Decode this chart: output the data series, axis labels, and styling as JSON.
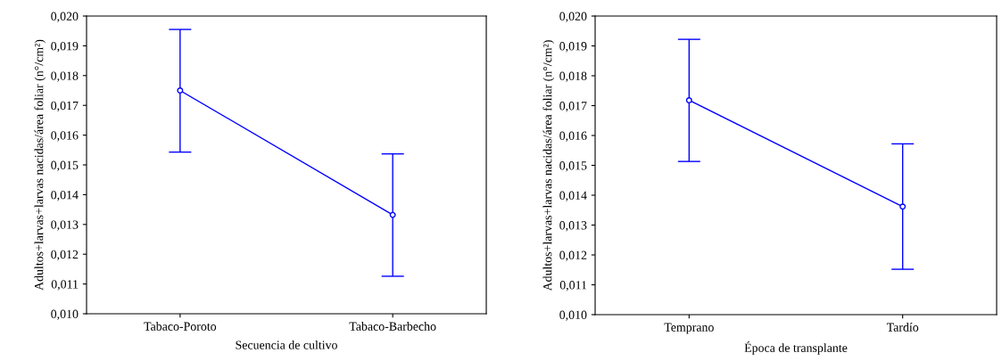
{
  "chart_data": [
    {
      "type": "line",
      "xlabel": "Secuencia de cultivo",
      "ylabel": "Adultos+larvas+larvas nacidas/área foliar (n°/cm²)",
      "categories": [
        "Tabaco-Poroto",
        "Tabaco-Barbecho"
      ],
      "series": [
        {
          "color": "#0000ff",
          "values": [
            0.0175,
            0.01332
          ],
          "errors": [
            [
              0.01543,
              0.01955
            ],
            [
              0.01126,
              0.01537
            ]
          ]
        }
      ],
      "ylim": [
        0.01,
        0.02
      ],
      "yticks": [
        {
          "value": 0.01,
          "label": "0,010"
        },
        {
          "value": 0.011,
          "label": "0,011"
        },
        {
          "value": 0.012,
          "label": "0,012"
        },
        {
          "value": 0.013,
          "label": "0,013"
        },
        {
          "value": 0.014,
          "label": "0,014"
        },
        {
          "value": 0.015,
          "label": "0,015"
        },
        {
          "value": 0.016,
          "label": "0,016"
        },
        {
          "value": 0.017,
          "label": "0,017"
        },
        {
          "value": 0.018,
          "label": "0,018"
        },
        {
          "value": 0.019,
          "label": "0,019"
        },
        {
          "value": 0.02,
          "label": "0,020"
        }
      ],
      "marker": "circle",
      "line_style": "solid",
      "grid": false,
      "legend": false
    },
    {
      "type": "line",
      "xlabel": "Época de transplante",
      "ylabel": "Adultos+larvas+larvas nacidas/área foliar (n°/cm²)",
      "categories": [
        "Temprano",
        "Tardío"
      ],
      "series": [
        {
          "color": "#0000ff",
          "values": [
            0.01718,
            0.01362
          ],
          "errors": [
            [
              0.01513,
              0.01922
            ],
            [
              0.01152,
              0.01572
            ]
          ]
        }
      ],
      "ylim": [
        0.01,
        0.02
      ],
      "yticks": [
        {
          "value": 0.01,
          "label": "0,010"
        },
        {
          "value": 0.011,
          "label": "0,011"
        },
        {
          "value": 0.012,
          "label": "0,012"
        },
        {
          "value": 0.013,
          "label": "0,013"
        },
        {
          "value": 0.014,
          "label": "0,014"
        },
        {
          "value": 0.015,
          "label": "0,015"
        },
        {
          "value": 0.016,
          "label": "0,016"
        },
        {
          "value": 0.017,
          "label": "0,017"
        },
        {
          "value": 0.018,
          "label": "0,018"
        },
        {
          "value": 0.019,
          "label": "0,019"
        },
        {
          "value": 0.02,
          "label": "0,020"
        }
      ],
      "marker": "circle",
      "line_style": "solid",
      "grid": false,
      "legend": false
    }
  ]
}
